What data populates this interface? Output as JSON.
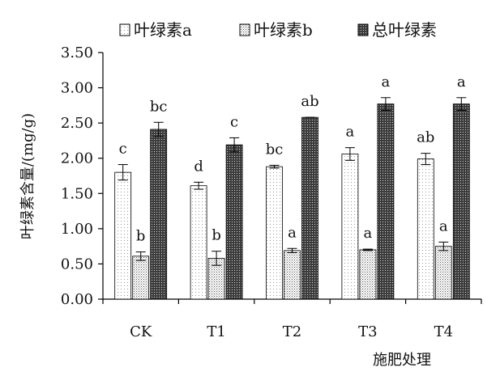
{
  "chart_data": {
    "type": "bar",
    "categories": [
      "CK",
      "T1",
      "T2",
      "T3",
      "T4"
    ],
    "series": [
      {
        "name": "叶绿素a",
        "values": [
          1.8,
          1.61,
          1.88,
          2.06,
          1.99
        ],
        "errors": [
          0.11,
          0.05,
          0.02,
          0.09,
          0.08
        ],
        "letters": [
          "c",
          "d",
          "bc",
          "a",
          "ab"
        ],
        "pattern": "dots-light"
      },
      {
        "name": "叶绿素b",
        "values": [
          0.61,
          0.58,
          0.69,
          0.7,
          0.75
        ],
        "errors": [
          0.06,
          0.1,
          0.03,
          0.01,
          0.06
        ],
        "letters": [
          "b",
          "b",
          "a",
          "a",
          "a"
        ],
        "pattern": "dots-medium"
      },
      {
        "name": "总叶绿素",
        "values": [
          2.41,
          2.19,
          2.58,
          2.77,
          2.77
        ],
        "errors": [
          0.1,
          0.1,
          0.0,
          0.09,
          0.09
        ],
        "letters": [
          "bc",
          "c",
          "ab",
          "a",
          "a"
        ],
        "pattern": "dots-dark"
      }
    ],
    "ylabel": "叶绿素含量/(mg/g)",
    "xlabel": "施肥处理",
    "ylim": [
      0,
      3.5
    ],
    "yticks": [
      "0.00",
      "0.50",
      "1.00",
      "1.50",
      "2.00",
      "2.50",
      "3.00",
      "3.50"
    ],
    "grid": false,
    "legend_position": "top"
  }
}
